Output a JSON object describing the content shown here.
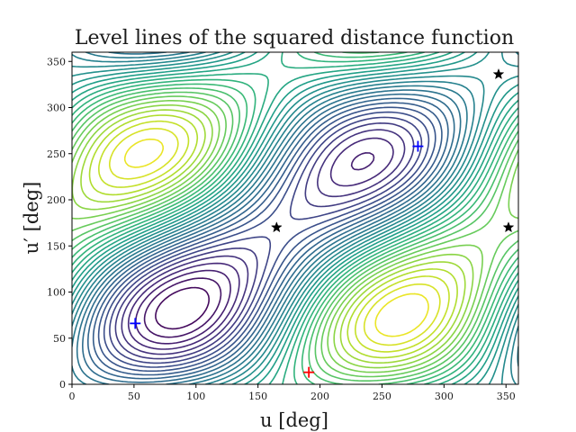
{
  "chart_data": {
    "type": "contour",
    "title": "Level lines of the squared distance function",
    "xlabel": "u [deg]",
    "ylabel": "u′ [deg]",
    "xlim": [
      0,
      360
    ],
    "ylim": [
      0,
      360
    ],
    "xticks": [
      0,
      50,
      100,
      150,
      200,
      250,
      300,
      350
    ],
    "yticks": [
      0,
      50,
      100,
      150,
      200,
      250,
      300,
      350
    ],
    "grid": false,
    "colormap": "viridis",
    "minima": [
      {
        "u": 51,
        "u_prime": 66,
        "marker": "plus",
        "color": "#0000ff"
      },
      {
        "u": 279,
        "u_prime": 258,
        "marker": "plus",
        "color": "#0000ff"
      }
    ],
    "maxima": [
      {
        "u": 191,
        "u_prime": 13,
        "marker": "plus",
        "color": "#ff0000"
      }
    ],
    "saddles": [
      {
        "u": 165,
        "u_prime": 170,
        "marker": "star",
        "color": "#000000"
      },
      {
        "u": 344,
        "u_prime": 336,
        "marker": "star",
        "color": "#000000"
      },
      {
        "u": 352,
        "u_prime": 170,
        "marker": "star",
        "color": "#000000"
      }
    ]
  }
}
